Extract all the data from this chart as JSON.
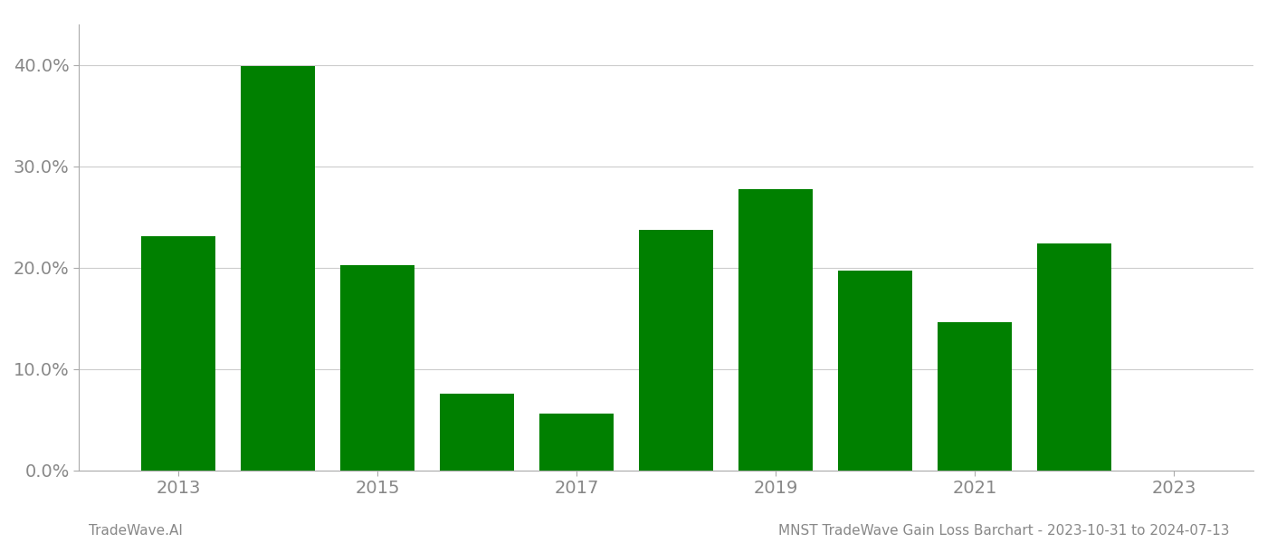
{
  "years": [
    2013,
    2014,
    2015,
    2016,
    2017,
    2018,
    2019,
    2020,
    2021,
    2022
  ],
  "values": [
    0.231,
    0.399,
    0.202,
    0.076,
    0.056,
    0.237,
    0.277,
    0.197,
    0.146,
    0.224
  ],
  "bar_color": "#008000",
  "background_color": "#ffffff",
  "title": "MNST TradeWave Gain Loss Barchart - 2023-10-31 to 2024-07-13",
  "footer_left": "TradeWave.AI",
  "ylim": [
    0,
    0.44
  ],
  "yticks": [
    0.0,
    0.1,
    0.2,
    0.3,
    0.4
  ],
  "xtick_labels": [
    "2013",
    "2015",
    "2017",
    "2019",
    "2021",
    "2023"
  ],
  "xtick_positions": [
    2013,
    2015,
    2017,
    2019,
    2021,
    2023
  ],
  "grid_color": "#cccccc",
  "tick_label_color": "#888888",
  "title_color": "#888888",
  "footer_color": "#888888",
  "spine_color": "#aaaaaa",
  "bar_width": 0.75
}
